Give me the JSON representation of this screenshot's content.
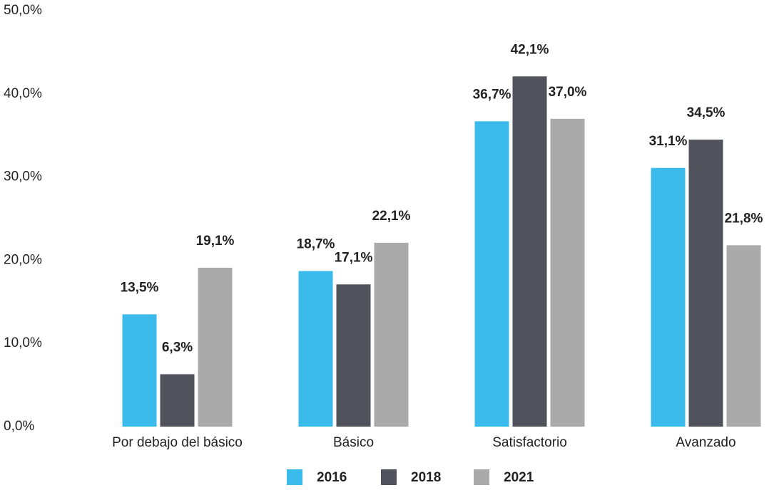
{
  "chart_data": {
    "type": "bar",
    "categories": [
      "Por debajo del básico",
      "Básico",
      "Satisfactorio",
      "Avanzado"
    ],
    "series": [
      {
        "name": "2016",
        "color": "#3bbbec",
        "values": [
          13.5,
          18.7,
          36.7,
          31.1
        ],
        "value_labels": [
          "13,5%",
          "18,7%",
          "36,7%",
          "31,1%"
        ]
      },
      {
        "name": "2018",
        "color": "#50535c",
        "values": [
          6.3,
          17.1,
          42.1,
          34.5
        ],
        "value_labels": [
          "6,3%",
          "17,1%",
          "42,1%",
          "34,5%"
        ]
      },
      {
        "name": "2021",
        "color": "#aaaaaa",
        "values": [
          19.1,
          22.1,
          37.0,
          21.8
        ],
        "value_labels": [
          "19,1%",
          "22,1%",
          "37,0%",
          "21,8%"
        ]
      }
    ],
    "ylim": [
      0,
      50
    ],
    "yticks": [
      {
        "value": 0,
        "label": "0,0%"
      },
      {
        "value": 10,
        "label": "10,0%"
      },
      {
        "value": 20,
        "label": "20,0%"
      },
      {
        "value": 30,
        "label": "30,0%"
      },
      {
        "value": 40,
        "label": "40,0%"
      },
      {
        "value": 50,
        "label": "50,0%"
      }
    ],
    "grid": false,
    "legend": "bottom"
  }
}
